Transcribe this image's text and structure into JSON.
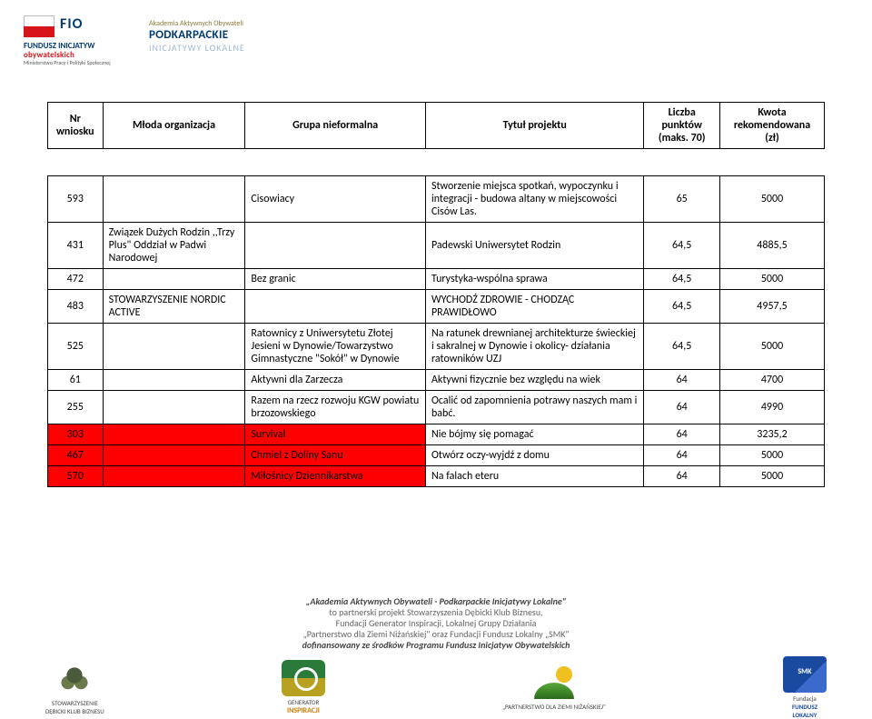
{
  "header": {
    "fio_main": "FIO",
    "fio_line1": "FUNDUSZ INICJATYW",
    "fio_line2": "obywatelskich",
    "fio_ministry": "Ministerstwo Pracy i Polityki Społecznej",
    "pil_top": "Akademia Aktywnych Obywateli",
    "pil_title": "PODKARPACKIE",
    "pil_sub": "INICJATYWY LOKALNE"
  },
  "columns": {
    "c1": "Nr wniosku",
    "c2": "Młoda organizacja",
    "c3": "Grupa nieformalna",
    "c4": "Tytuł projektu",
    "c5": "Liczba punktów (maks. 70)",
    "c6": "Kwota rekomendowana (zł)"
  },
  "rows": [
    {
      "nr": "593",
      "org": "",
      "grp": "Cisowiacy",
      "title": "Stworzenie miejsca spotkań, wypoczynku i integracji - budowa altany w miejscowości Cisów Las.",
      "pts": "65",
      "kw": "5000",
      "red": false
    },
    {
      "nr": "431",
      "org": "Związek Dużych Rodzin ,,Trzy Plus\" Oddział w Padwi Narodowej",
      "grp": "",
      "title": "Padewski Uniwersytet  Rodzin",
      "pts": "64,5",
      "kw": "4885,5",
      "red": false
    },
    {
      "nr": "472",
      "org": "",
      "grp": "Bez granic",
      "title": "Turystyka-wspólna sprawa",
      "pts": "64,5",
      "kw": "5000",
      "red": false
    },
    {
      "nr": "483",
      "org": "STOWARZYSZENIE NORDIC ACTIVE",
      "grp": "",
      "title": "WYCHODŹ ZDROWIE - CHODZĄC PRAWIDŁOWO",
      "pts": "64,5",
      "kw": "4957,5",
      "red": false
    },
    {
      "nr": "525",
      "org": "",
      "grp": "Ratownicy z  Uniwersytetu Złotej Jesieni w Dynowie/Towarzystwo Gimnastyczne \"Sokół\" w Dynowie",
      "title": "Na ratunek drewnianej architekturze świeckiej i sakralnej w Dynowie i okolicy- działania ratowników UZJ",
      "pts": "64,5",
      "kw": "5000",
      "red": false
    },
    {
      "nr": "61",
      "org": "",
      "grp": "Aktywni dla Zarzecza",
      "title": "Aktywni fizycznie bez względu na wiek",
      "pts": "64",
      "kw": "4700",
      "red": false
    },
    {
      "nr": "255",
      "org": "",
      "grp": "Razem na rzecz rozwoju KGW powiatu brzozowskiego",
      "title": "Ocalić od zapomnienia potrawy naszych mam i babć.",
      "pts": "64",
      "kw": "4990",
      "red": false
    },
    {
      "nr": "303",
      "org": "",
      "grp": "Survival",
      "title": "Nie bójmy się pomagać",
      "pts": "64",
      "kw": "3235,2",
      "red": true
    },
    {
      "nr": "467",
      "org": "",
      "grp": "Chmiel z Doliny Sanu",
      "title": "Otwórz oczy-wyjdź z domu",
      "pts": "64",
      "kw": "5000",
      "red": true
    },
    {
      "nr": "570",
      "org": "",
      "grp": "Miłośnicy Dziennikarstwa",
      "title": "Na falach eteru",
      "pts": "64",
      "kw": "5000",
      "red": true
    }
  ],
  "footer": {
    "line1": "„Akademia Aktywnych Obywateli - Podkarpackie Inicjatywy Lokalne\"",
    "line2": "to partnerski projekt Stowarzyszenia Dębicki Klub Biznesu,",
    "line3": "Fundacji Generator Inspiracji, Lokalnej Grupy Działania",
    "line4": "„Partnerstwo dla Ziemi Niżańskiej\" oraz Fundacji Fundusz Lokalny „SMK\"",
    "line5": "dofinansowany ze środków Programu Fundusz Inicjatyw Obywatelskich",
    "logos": {
      "l1a": "STOWARZYSZENIE",
      "l1b": "DĘBICKI KLUB BIZNESU",
      "l2a": "GENERATOR",
      "l2b": "INSPIRACJI",
      "l3": "„PARTNERSTWO DLA ZIEMI NIŻAŃSKIEJ\"",
      "l4a": "Fundacja",
      "l4b": "FUNDUSZ",
      "l4c": "LOKALNY"
    }
  },
  "colors": {
    "border": "#000000",
    "red_highlight": "#ff0000",
    "background": "#ffffff",
    "blue": "#003a73"
  }
}
